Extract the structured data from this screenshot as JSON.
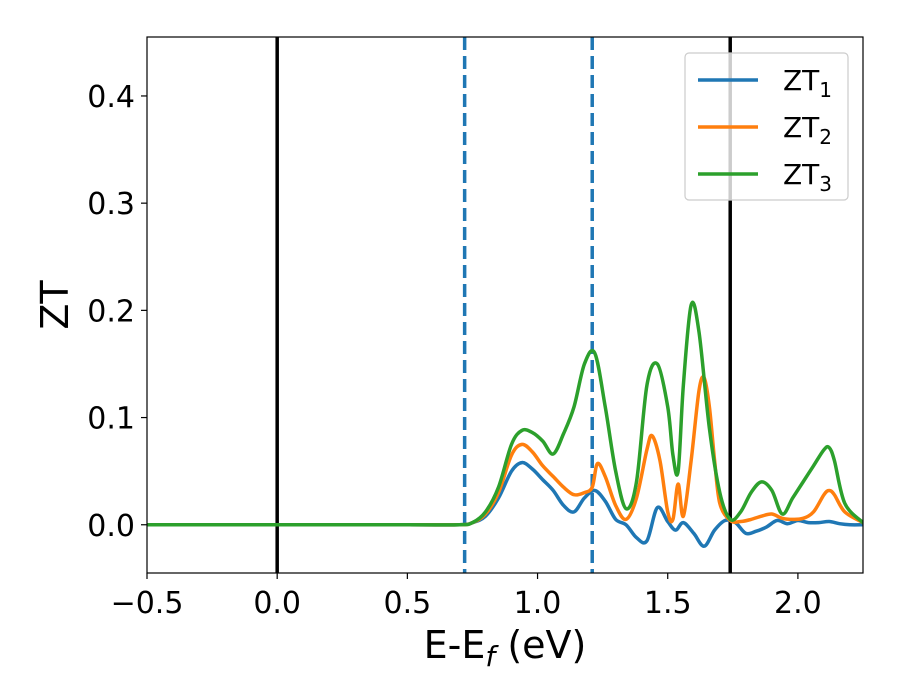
{
  "chart_data": {
    "type": "line",
    "xlabel": "E-E",
    "xlabel_sub": "f",
    "xlabel_unit": " (eV)",
    "ylabel": "ZT",
    "xlim": [
      -0.5,
      2.25
    ],
    "ylim": [
      -0.045,
      0.455
    ],
    "xticks": [
      -0.5,
      0.0,
      0.5,
      1.0,
      1.5,
      2.0
    ],
    "xtick_labels": [
      "−0.5",
      "0.0",
      "0.5",
      "1.0",
      "1.5",
      "2.0"
    ],
    "yticks": [
      0.0,
      0.1,
      0.2,
      0.3,
      0.4
    ],
    "ytick_labels": [
      "0.0",
      "0.1",
      "0.2",
      "0.3",
      "0.4"
    ],
    "grid": false,
    "legend_position": "top-right",
    "vlines": [
      {
        "x": 0.0,
        "style": "solid",
        "color": "#000000"
      },
      {
        "x": 0.72,
        "style": "dashed",
        "color": "#1f77b4"
      },
      {
        "x": 1.21,
        "style": "dashed",
        "color": "#1f77b4"
      },
      {
        "x": 1.74,
        "style": "solid",
        "color": "#000000"
      }
    ],
    "series": [
      {
        "name": "ZT",
        "sub": "1",
        "color": "#1f77b4",
        "x": [
          -0.5,
          0.0,
          0.5,
          0.7,
          0.75,
          0.8,
          0.85,
          0.9,
          0.94,
          0.98,
          1.02,
          1.06,
          1.1,
          1.14,
          1.18,
          1.22,
          1.26,
          1.3,
          1.34,
          1.38,
          1.42,
          1.46,
          1.5,
          1.53,
          1.56,
          1.6,
          1.64,
          1.68,
          1.72,
          1.76,
          1.8,
          1.84,
          1.88,
          1.92,
          1.96,
          2.0,
          2.04,
          2.08,
          2.12,
          2.16,
          2.2,
          2.25
        ],
        "y": [
          0.0,
          0.0,
          0.0,
          0.0,
          0.002,
          0.008,
          0.025,
          0.05,
          0.058,
          0.052,
          0.042,
          0.032,
          0.018,
          0.012,
          0.025,
          0.032,
          0.022,
          0.005,
          0.0,
          -0.012,
          -0.015,
          0.016,
          0.003,
          -0.005,
          0.002,
          -0.008,
          -0.02,
          -0.005,
          0.004,
          0.002,
          -0.008,
          -0.006,
          -0.002,
          0.004,
          0.001,
          0.004,
          0.002,
          0.002,
          0.003,
          0.001,
          0.0,
          0.0
        ]
      },
      {
        "name": "ZT",
        "sub": "2",
        "color": "#ff7f0e",
        "x": [
          -0.5,
          0.0,
          0.5,
          0.7,
          0.75,
          0.8,
          0.85,
          0.9,
          0.94,
          0.98,
          1.02,
          1.06,
          1.1,
          1.14,
          1.18,
          1.21,
          1.23,
          1.26,
          1.3,
          1.34,
          1.38,
          1.42,
          1.44,
          1.47,
          1.5,
          1.52,
          1.54,
          1.56,
          1.59,
          1.62,
          1.64,
          1.66,
          1.68,
          1.7,
          1.74,
          1.78,
          1.82,
          1.86,
          1.9,
          1.94,
          1.98,
          2.02,
          2.06,
          2.1,
          2.12,
          2.14,
          2.18,
          2.25
        ],
        "y": [
          0.0,
          0.0,
          0.0,
          0.0,
          0.002,
          0.01,
          0.03,
          0.065,
          0.075,
          0.068,
          0.055,
          0.045,
          0.035,
          0.028,
          0.03,
          0.035,
          0.057,
          0.045,
          0.018,
          0.005,
          0.025,
          0.07,
          0.083,
          0.06,
          0.012,
          0.005,
          0.038,
          0.008,
          0.06,
          0.125,
          0.137,
          0.11,
          0.06,
          0.02,
          0.004,
          0.003,
          0.005,
          0.008,
          0.01,
          0.006,
          0.005,
          0.006,
          0.012,
          0.028,
          0.032,
          0.028,
          0.012,
          0.002
        ]
      },
      {
        "name": "ZT",
        "sub": "3",
        "color": "#2ca02c",
        "x": [
          -0.5,
          0.0,
          0.5,
          0.7,
          0.75,
          0.8,
          0.85,
          0.9,
          0.94,
          0.98,
          1.02,
          1.06,
          1.1,
          1.14,
          1.18,
          1.22,
          1.26,
          1.3,
          1.34,
          1.38,
          1.42,
          1.46,
          1.5,
          1.52,
          1.54,
          1.56,
          1.59,
          1.62,
          1.66,
          1.7,
          1.74,
          1.78,
          1.82,
          1.86,
          1.9,
          1.94,
          1.98,
          2.02,
          2.06,
          2.1,
          2.12,
          2.14,
          2.18,
          2.25
        ],
        "y": [
          0.0,
          0.0,
          0.0,
          0.0,
          0.002,
          0.012,
          0.035,
          0.075,
          0.088,
          0.086,
          0.078,
          0.066,
          0.085,
          0.11,
          0.15,
          0.16,
          0.11,
          0.05,
          0.015,
          0.04,
          0.13,
          0.15,
          0.11,
          0.065,
          0.05,
          0.13,
          0.205,
          0.18,
          0.09,
          0.03,
          0.005,
          0.012,
          0.03,
          0.04,
          0.032,
          0.01,
          0.025,
          0.04,
          0.055,
          0.07,
          0.072,
          0.06,
          0.02,
          0.002
        ]
      }
    ]
  }
}
